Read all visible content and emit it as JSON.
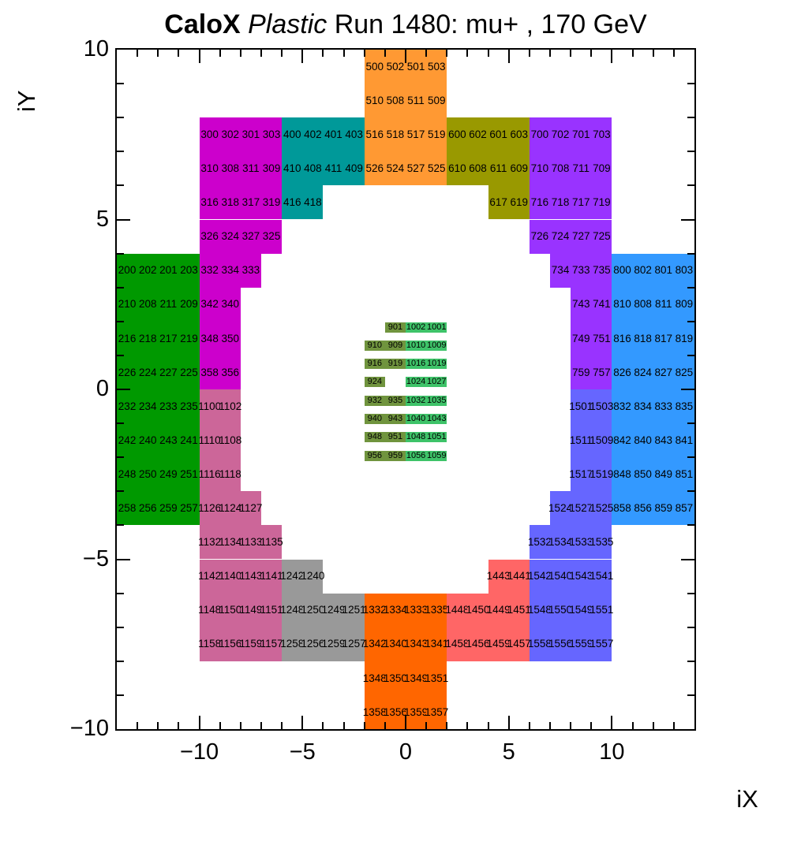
{
  "title": {
    "experiment": "CaloX",
    "material": "Plastic",
    "run_info": "Run 1480: mu+ , 170 GeV"
  },
  "axes": {
    "x": {
      "title": "iX",
      "min": -14,
      "max": 14,
      "major_ticks": [
        -10,
        -5,
        0,
        5,
        10
      ],
      "minor_step": 1
    },
    "y": {
      "title": "iY",
      "min": -10,
      "max": 10,
      "major_ticks": [
        -10,
        -5,
        0,
        5,
        10
      ],
      "minor_step": 1
    }
  },
  "chart_data": {
    "type": "heatmap",
    "title": "CaloX Plastic Run 1480: mu+ , 170 GeV",
    "xlabel": "iX",
    "ylabel": "iY",
    "xlim": [
      -14,
      14
    ],
    "ylim": [
      -10,
      10
    ],
    "grid": false,
    "legend": "none",
    "modules": [
      {
        "name": "module-200",
        "color": "#009900",
        "rows": [
          {
            "x": -14,
            "y": 3,
            "labels": [
              "200",
              "202",
              "201",
              "203"
            ]
          },
          {
            "x": -14,
            "y": 2,
            "labels": [
              "210",
              "208",
              "211",
              "209"
            ]
          },
          {
            "x": -14,
            "y": 1,
            "labels": [
              "216",
              "218",
              "217",
              "219"
            ]
          },
          {
            "x": -14,
            "y": 0,
            "labels": [
              "226",
              "224",
              "227",
              "225"
            ]
          },
          {
            "x": -14,
            "y": -1,
            "labels": [
              "232",
              "234",
              "233",
              "235"
            ]
          },
          {
            "x": -14,
            "y": -2,
            "labels": [
              "242",
              "240",
              "243",
              "241"
            ]
          },
          {
            "x": -14,
            "y": -3,
            "labels": [
              "248",
              "250",
              "249",
              "251"
            ]
          },
          {
            "x": -14,
            "y": -4,
            "labels": [
              "258",
              "256",
              "259",
              "257"
            ]
          }
        ]
      },
      {
        "name": "module-300",
        "color": "#CC00CC",
        "rows": [
          {
            "x": -10,
            "y": 7,
            "labels": [
              "300",
              "302",
              "301",
              "303"
            ]
          },
          {
            "x": -10,
            "y": 6,
            "labels": [
              "310",
              "308",
              "311",
              "309"
            ]
          },
          {
            "x": -10,
            "y": 5,
            "labels": [
              "316",
              "318",
              "317",
              "319"
            ]
          },
          {
            "x": -10,
            "y": 4,
            "labels": [
              "326",
              "324",
              "327",
              "325"
            ]
          },
          {
            "x": -10,
            "y": 3,
            "labels": [
              "332",
              "334",
              "333"
            ]
          },
          {
            "x": -10,
            "y": 2,
            "labels": [
              "342",
              "340"
            ]
          },
          {
            "x": -10,
            "y": 1,
            "labels": [
              "348",
              "350"
            ]
          },
          {
            "x": -10,
            "y": 0,
            "labels": [
              "358",
              "356"
            ]
          }
        ]
      },
      {
        "name": "module-400",
        "color": "#009999",
        "rows": [
          {
            "x": -6,
            "y": 7,
            "labels": [
              "400",
              "402",
              "401",
              "403"
            ]
          },
          {
            "x": -6,
            "y": 6,
            "labels": [
              "410",
              "408",
              "411",
              "409"
            ]
          },
          {
            "x": -6,
            "y": 5,
            "labels": [
              "416",
              "418"
            ]
          }
        ]
      },
      {
        "name": "module-500",
        "color": "#FF9933",
        "rows": [
          {
            "x": -2,
            "y": 9,
            "labels": [
              "500",
              "502",
              "501",
              "503"
            ]
          },
          {
            "x": -2,
            "y": 8,
            "labels": [
              "510",
              "508",
              "511",
              "509"
            ]
          },
          {
            "x": -2,
            "y": 7,
            "labels": [
              "516",
              "518",
              "517",
              "519"
            ]
          },
          {
            "x": -2,
            "y": 6,
            "labels": [
              "526",
              "524",
              "527",
              "525"
            ]
          }
        ]
      },
      {
        "name": "module-600",
        "color": "#999900",
        "rows": [
          {
            "x": 2,
            "y": 7,
            "labels": [
              "600",
              "602",
              "601",
              "603"
            ]
          },
          {
            "x": 2,
            "y": 6,
            "labels": [
              "610",
              "608",
              "611",
              "609"
            ]
          },
          {
            "x": 4,
            "y": 5,
            "labels": [
              "617",
              "619"
            ]
          }
        ]
      },
      {
        "name": "module-700",
        "color": "#9933FF",
        "rows": [
          {
            "x": 6,
            "y": 7,
            "labels": [
              "700",
              "702",
              "701",
              "703"
            ]
          },
          {
            "x": 6,
            "y": 6,
            "labels": [
              "710",
              "708",
              "711",
              "709"
            ]
          },
          {
            "x": 6,
            "y": 5,
            "labels": [
              "716",
              "718",
              "717",
              "719"
            ]
          },
          {
            "x": 6,
            "y": 4,
            "labels": [
              "726",
              "724",
              "727",
              "725"
            ]
          },
          {
            "x": 7,
            "y": 3,
            "labels": [
              "734",
              "733",
              "735"
            ]
          },
          {
            "x": 8,
            "y": 2,
            "labels": [
              "743",
              "741"
            ]
          },
          {
            "x": 8,
            "y": 1,
            "labels": [
              "749",
              "751"
            ]
          },
          {
            "x": 8,
            "y": 0,
            "labels": [
              "759",
              "757"
            ]
          }
        ]
      },
      {
        "name": "module-800",
        "color": "#3399FF",
        "rows": [
          {
            "x": 10,
            "y": 3,
            "labels": [
              "800",
              "802",
              "801",
              "803"
            ]
          },
          {
            "x": 10,
            "y": 2,
            "labels": [
              "810",
              "808",
              "811",
              "809"
            ]
          },
          {
            "x": 10,
            "y": 1,
            "labels": [
              "816",
              "818",
              "817",
              "819"
            ]
          },
          {
            "x": 10,
            "y": 0,
            "labels": [
              "826",
              "824",
              "827",
              "825"
            ]
          },
          {
            "x": 10,
            "y": -1,
            "labels": [
              "832",
              "834",
              "833",
              "835"
            ]
          },
          {
            "x": 10,
            "y": -2,
            "labels": [
              "842",
              "840",
              "843",
              "841"
            ]
          },
          {
            "x": 10,
            "y": -3,
            "labels": [
              "848",
              "850",
              "849",
              "851"
            ]
          },
          {
            "x": 10,
            "y": -4,
            "labels": [
              "858",
              "856",
              "859",
              "857"
            ]
          }
        ]
      },
      {
        "name": "module-900",
        "color": "#70943E",
        "rows": [
          {
            "x": -1,
            "y": 1.68,
            "h": 0.3,
            "labels": [
              "901"
            ]
          },
          {
            "x": -2,
            "y": 1.14,
            "h": 0.3,
            "labels": [
              "910",
              "909"
            ]
          },
          {
            "x": -2,
            "y": 0.6,
            "h": 0.3,
            "labels": [
              "916",
              "919"
            ]
          },
          {
            "x": -2,
            "y": 0.06,
            "h": 0.3,
            "labels": [
              "924"
            ]
          },
          {
            "x": -2,
            "y": -0.48,
            "h": 0.3,
            "labels": [
              "932",
              "935"
            ]
          },
          {
            "x": -2,
            "y": -1.02,
            "h": 0.3,
            "labels": [
              "940",
              "943"
            ]
          },
          {
            "x": -2,
            "y": -1.56,
            "h": 0.3,
            "labels": [
              "948",
              "951"
            ]
          },
          {
            "x": -2,
            "y": -2.1,
            "h": 0.3,
            "labels": [
              "956",
              "959"
            ]
          }
        ]
      },
      {
        "name": "module-1000",
        "color": "#3EC369",
        "rows": [
          {
            "x": 0,
            "y": 1.68,
            "h": 0.3,
            "labels": [
              "1002",
              "1001"
            ]
          },
          {
            "x": 0,
            "y": 1.14,
            "h": 0.3,
            "labels": [
              "1010",
              "1009"
            ]
          },
          {
            "x": 0,
            "y": 0.6,
            "h": 0.3,
            "labels": [
              "1016",
              "1019"
            ]
          },
          {
            "x": 0,
            "y": 0.06,
            "h": 0.3,
            "labels": [
              "1024",
              "1027"
            ]
          },
          {
            "x": 0,
            "y": -0.48,
            "h": 0.3,
            "labels": [
              "1032",
              "1035"
            ]
          },
          {
            "x": 0,
            "y": -1.02,
            "h": 0.3,
            "labels": [
              "1040",
              "1043"
            ]
          },
          {
            "x": 0,
            "y": -1.56,
            "h": 0.3,
            "labels": [
              "1048",
              "1051"
            ]
          },
          {
            "x": 0,
            "y": -2.1,
            "h": 0.3,
            "labels": [
              "1056",
              "1059"
            ]
          }
        ]
      },
      {
        "name": "module-1100",
        "color": "#CC6699",
        "rows": [
          {
            "x": -10,
            "y": -1,
            "labels": [
              "1100",
              "1102"
            ]
          },
          {
            "x": -10,
            "y": -2,
            "labels": [
              "1110",
              "1108"
            ]
          },
          {
            "x": -10,
            "y": -3,
            "labels": [
              "1116",
              "1118"
            ]
          },
          {
            "x": -10,
            "y": -4,
            "labels": [
              "1126",
              "1124",
              "1127"
            ]
          },
          {
            "x": -10,
            "y": -5,
            "labels": [
              "1132",
              "1134",
              "1133",
              "1135"
            ]
          },
          {
            "x": -10,
            "y": -6,
            "labels": [
              "1142",
              "1140",
              "1143",
              "1141"
            ]
          },
          {
            "x": -10,
            "y": -7,
            "labels": [
              "1148",
              "1150",
              "1149",
              "1151"
            ]
          },
          {
            "x": -10,
            "y": -8,
            "labels": [
              "1158",
              "1156",
              "1159",
              "1157"
            ]
          }
        ]
      },
      {
        "name": "module-1200",
        "color": "#999999",
        "rows": [
          {
            "x": -6,
            "y": -6,
            "labels": [
              "1242",
              "1240"
            ]
          },
          {
            "x": -6,
            "y": -7,
            "labels": [
              "1248",
              "1250",
              "1249",
              "1251"
            ]
          },
          {
            "x": -6,
            "y": -8,
            "labels": [
              "1258",
              "1256",
              "1259",
              "1257"
            ]
          }
        ]
      },
      {
        "name": "module-1300",
        "color": "#FF6600",
        "rows": [
          {
            "x": -2,
            "y": -7,
            "labels": [
              "1332",
              "1334",
              "1333",
              "1335"
            ]
          },
          {
            "x": -2,
            "y": -8,
            "labels": [
              "1342",
              "1340",
              "1343",
              "1341"
            ]
          },
          {
            "x": -2,
            "y": -9,
            "labels": [
              "1348",
              "1350",
              "1349",
              "1351"
            ]
          },
          {
            "x": -2,
            "y": -10,
            "labels": [
              "1358",
              "1356",
              "1359",
              "1357"
            ]
          }
        ]
      },
      {
        "name": "module-1400",
        "color": "#FF6666",
        "rows": [
          {
            "x": 4,
            "y": -6,
            "labels": [
              "1443",
              "1441"
            ]
          },
          {
            "x": 2,
            "y": -7,
            "labels": [
              "1448",
              "1450",
              "1449",
              "1451"
            ]
          },
          {
            "x": 2,
            "y": -8,
            "labels": [
              "1458",
              "1456",
              "1459",
              "1457"
            ]
          }
        ]
      },
      {
        "name": "module-1500",
        "color": "#6666FF",
        "rows": [
          {
            "x": 8,
            "y": -1,
            "labels": [
              "1501",
              "1503"
            ]
          },
          {
            "x": 8,
            "y": -2,
            "labels": [
              "1511",
              "1509"
            ]
          },
          {
            "x": 8,
            "y": -3,
            "labels": [
              "1517",
              "1519"
            ]
          },
          {
            "x": 7,
            "y": -4,
            "labels": [
              "1524",
              "1527",
              "1525"
            ]
          },
          {
            "x": 6,
            "y": -5,
            "labels": [
              "1532",
              "1534",
              "1533",
              "1535"
            ]
          },
          {
            "x": 6,
            "y": -6,
            "labels": [
              "1542",
              "1540",
              "1543",
              "1541"
            ]
          },
          {
            "x": 6,
            "y": -7,
            "labels": [
              "1548",
              "1550",
              "1549",
              "1551"
            ]
          },
          {
            "x": 6,
            "y": -8,
            "labels": [
              "1558",
              "1556",
              "1559",
              "1557"
            ]
          }
        ]
      }
    ]
  }
}
